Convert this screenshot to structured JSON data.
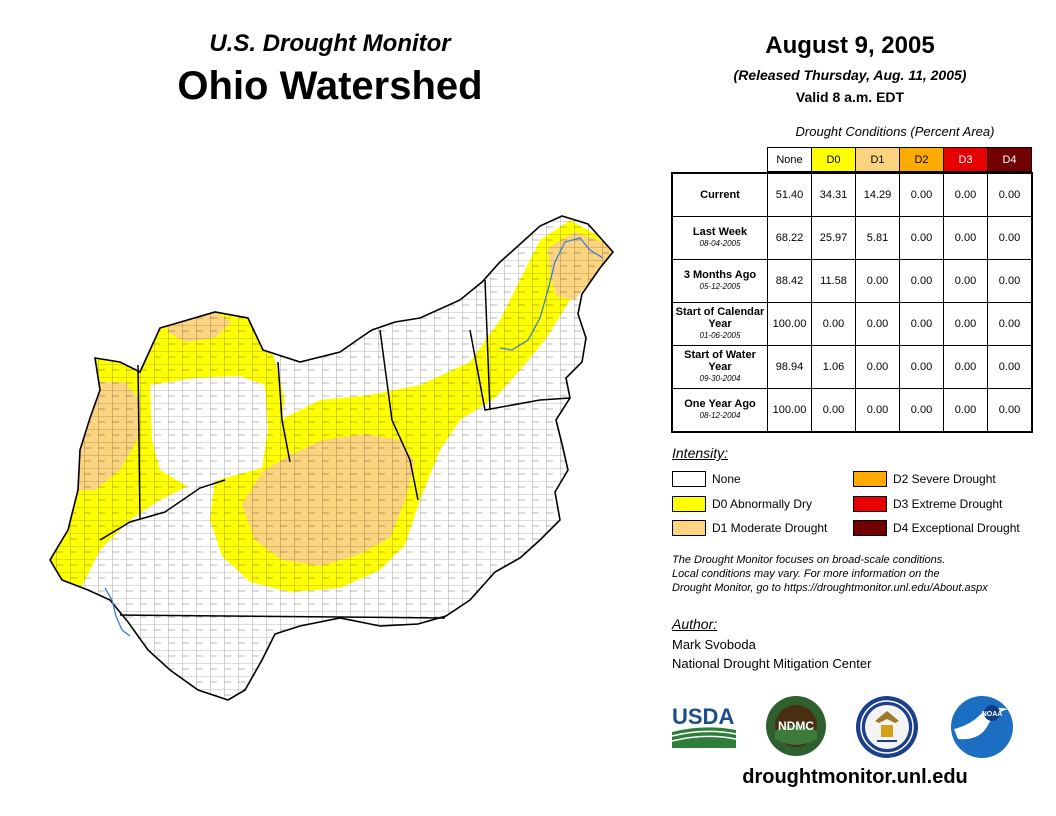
{
  "header": {
    "subtitle": "U.S. Drought Monitor",
    "title": "Ohio Watershed",
    "date": "August 9, 2005",
    "released": "(Released Thursday, Aug. 11, 2005)",
    "valid": "Valid 8 a.m. EDT"
  },
  "conditions": {
    "title": "Drought Conditions (Percent Area)",
    "columns": [
      "None",
      "D0",
      "D1",
      "D2",
      "D3",
      "D4"
    ],
    "column_colors": [
      "#ffffff",
      "#ffff00",
      "#fcd37f",
      "#ffaa00",
      "#e60000",
      "#730000"
    ],
    "rows": [
      {
        "label": "Current",
        "date": "",
        "values": [
          "51.40",
          "34.31",
          "14.29",
          "0.00",
          "0.00",
          "0.00"
        ]
      },
      {
        "label": "Last Week",
        "date": "08-04-2005",
        "values": [
          "68.22",
          "25.97",
          "5.81",
          "0.00",
          "0.00",
          "0.00"
        ]
      },
      {
        "label": "3 Months Ago",
        "date": "05-12-2005",
        "values": [
          "88.42",
          "11.58",
          "0.00",
          "0.00",
          "0.00",
          "0.00"
        ]
      },
      {
        "label": "Start of Calendar Year",
        "date": "01-06-2005",
        "values": [
          "100.00",
          "0.00",
          "0.00",
          "0.00",
          "0.00",
          "0.00"
        ]
      },
      {
        "label": "Start of Water Year",
        "date": "09-30-2004",
        "values": [
          "98.94",
          "1.06",
          "0.00",
          "0.00",
          "0.00",
          "0.00"
        ]
      },
      {
        "label": "One Year Ago",
        "date": "08-12-2004",
        "values": [
          "100.00",
          "0.00",
          "0.00",
          "0.00",
          "0.00",
          "0.00"
        ]
      }
    ]
  },
  "legend": {
    "title": "Intensity:",
    "items": [
      {
        "label": "None",
        "color": "#ffffff"
      },
      {
        "label": "D0 Abnormally Dry",
        "color": "#ffff00"
      },
      {
        "label": "D1 Moderate Drought",
        "color": "#fcd37f"
      },
      {
        "label": "D2 Severe Drought",
        "color": "#ffaa00"
      },
      {
        "label": "D3 Extreme Drought",
        "color": "#e60000"
      },
      {
        "label": "D4 Exceptional Drought",
        "color": "#730000"
      }
    ]
  },
  "note": {
    "line1": "The Drought Monitor focuses on broad-scale conditions.",
    "line2": "Local conditions may vary. For more information on the",
    "line3": "Drought Monitor, go to https://droughtmonitor.unl.edu/About.aspx"
  },
  "author": {
    "label": "Author:",
    "name": "Mark Svoboda",
    "org": "National Drought Mitigation Center"
  },
  "logos": {
    "usda": "USDA",
    "ndmc": "NDMC",
    "noaa": "NOAA"
  },
  "footer_url": "droughtmonitor.unl.edu"
}
